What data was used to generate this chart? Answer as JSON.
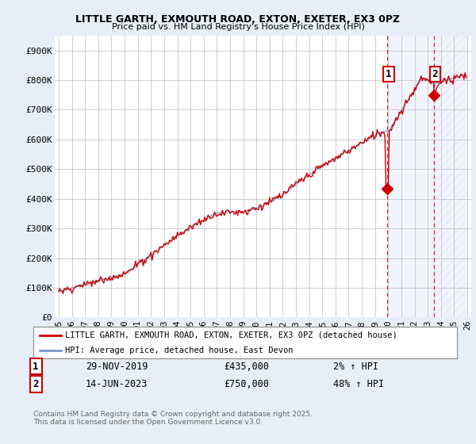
{
  "title1": "LITTLE GARTH, EXMOUTH ROAD, EXTON, EXETER, EX3 0PZ",
  "title2": "Price paid vs. HM Land Registry's House Price Index (HPI)",
  "bg_color": "#e8eef8",
  "plot_bg": "#ffffff",
  "grid_color": "#bbbbbb",
  "line1_color": "#cc0000",
  "line2_color": "#7799cc",
  "vline_color": "#cc0000",
  "sale1_year": 2019.92,
  "sale1_price": 435000,
  "sale2_year": 2023.46,
  "sale2_price": 750000,
  "legend_line1": "LITTLE GARTH, EXMOUTH ROAD, EXTON, EXETER, EX3 0PZ (detached house)",
  "legend_line2": "HPI: Average price, detached house, East Devon",
  "note1_date": "29-NOV-2019",
  "note1_price": "£435,000",
  "note1_hpi": "2% ↑ HPI",
  "note2_date": "14-JUN-2023",
  "note2_price": "£750,000",
  "note2_hpi": "48% ↑ HPI",
  "footer": "Contains HM Land Registry data © Crown copyright and database right 2025.\nThis data is licensed under the Open Government Licence v3.0.",
  "ylim": [
    0,
    950000
  ],
  "yticks": [
    0,
    100000,
    200000,
    300000,
    400000,
    500000,
    600000,
    700000,
    800000,
    900000
  ],
  "ytick_labels": [
    "£0",
    "£100K",
    "£200K",
    "£300K",
    "£400K",
    "£500K",
    "£600K",
    "£700K",
    "£800K",
    "£900K"
  ]
}
